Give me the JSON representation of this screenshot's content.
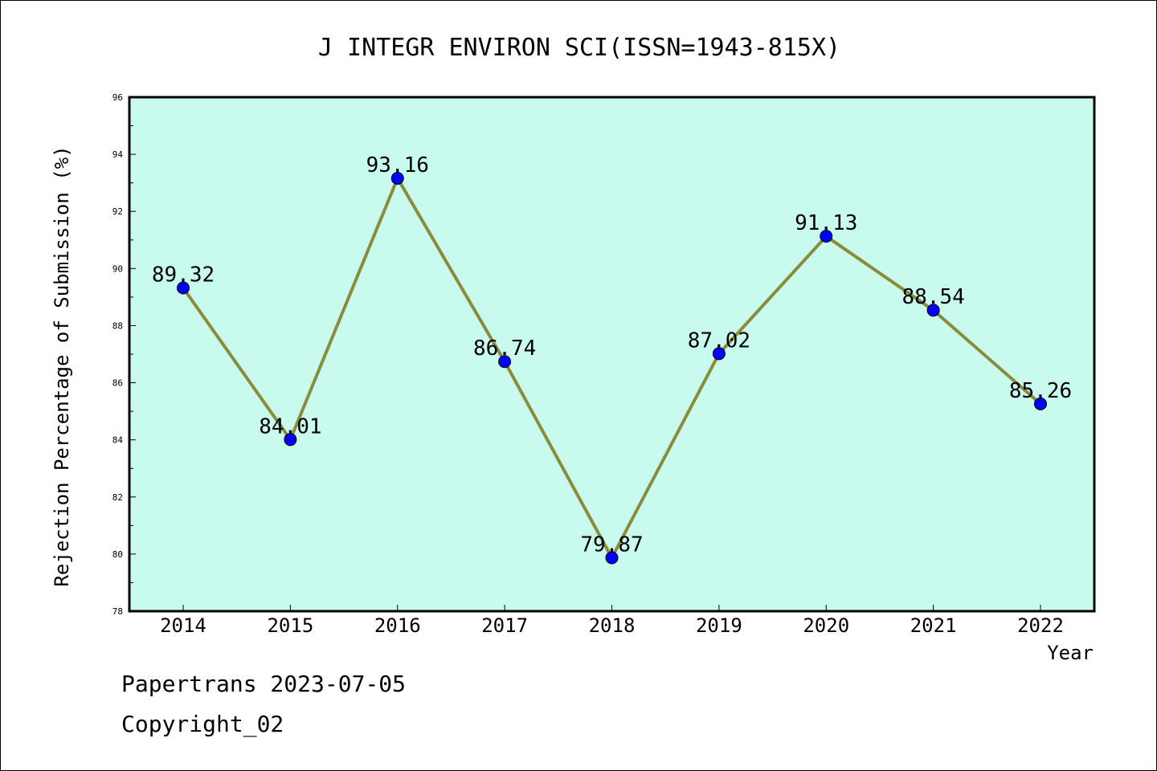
{
  "chart_data": {
    "type": "line",
    "title": "J INTEGR ENVIRON SCI(ISSN=1943-815X)",
    "xlabel": "Year",
    "ylabel": "Rejection Percentage of Submission (%)",
    "categories": [
      "2014",
      "2015",
      "2016",
      "2017",
      "2018",
      "2019",
      "2020",
      "2021",
      "2022"
    ],
    "series": [
      {
        "values": [
          89.32,
          84.01,
          93.16,
          86.74,
          79.87,
          87.02,
          91.13,
          88.54,
          85.26
        ],
        "labels": [
          "89.32",
          "84.01",
          "93.16",
          "86.74",
          "79.87",
          "87.02",
          "91.13",
          "88.54",
          "85.26"
        ]
      }
    ],
    "ylim": [
      78,
      96
    ],
    "yticks": [
      "78",
      "80",
      "82",
      "84",
      "86",
      "88",
      "90",
      "92",
      "94",
      "96"
    ],
    "grid": false,
    "legend": "none",
    "colors": {
      "plot_background": "#c8fbee",
      "line": "#8b8b3c",
      "marker": "#0000ff"
    }
  },
  "footer": {
    "line1": "Papertrans 2023-07-05",
    "line2": "Copyright_02"
  }
}
